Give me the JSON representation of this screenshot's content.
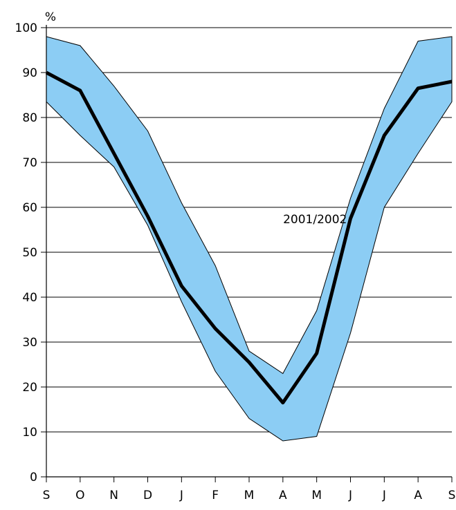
{
  "chart_data": {
    "type": "area",
    "title": "",
    "xlabel": "",
    "ylabel": "%",
    "ylim": [
      0,
      100
    ],
    "yticks": [
      0,
      10,
      20,
      30,
      40,
      50,
      60,
      70,
      80,
      90,
      100
    ],
    "categories": [
      "S",
      "O",
      "N",
      "D",
      "J",
      "F",
      "M",
      "A",
      "M",
      "J",
      "J",
      "A",
      "S"
    ],
    "grid": true,
    "band": {
      "upper": [
        98,
        96,
        87,
        77,
        61,
        47,
        28,
        23,
        37,
        62,
        82,
        97,
        98
      ],
      "lower": [
        83.5,
        76,
        69,
        56,
        39,
        23.5,
        13,
        8,
        9,
        32,
        60,
        72,
        83.5
      ],
      "color": "#8ccdf4",
      "outline": "#000000"
    },
    "series": [
      {
        "name": "2001/2002",
        "values": [
          90,
          86,
          72,
          58,
          42.5,
          33,
          25.5,
          16.5,
          27.5,
          57.5,
          76,
          86.5,
          88
        ],
        "color": "#000000"
      }
    ],
    "annotations": [
      {
        "text": "2001/2002",
        "x_index": 7.95,
        "y": 56.5
      }
    ]
  }
}
